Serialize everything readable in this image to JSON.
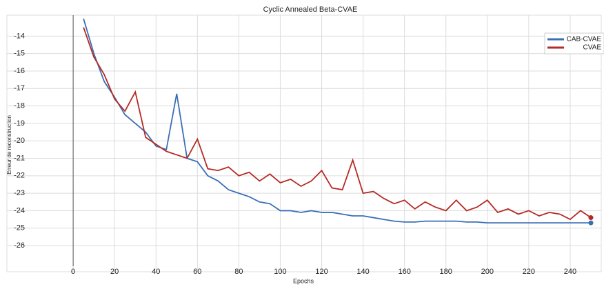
{
  "chart_data": {
    "type": "line",
    "title": "Cyclic Annealed Beta-CVAE",
    "x_label": "Epochs",
    "y_label": "Erreur de reconstruction",
    "x": [
      5,
      10,
      15,
      20,
      25,
      30,
      35,
      40,
      45,
      50,
      55,
      60,
      65,
      70,
      75,
      80,
      85,
      90,
      95,
      100,
      105,
      110,
      115,
      120,
      125,
      130,
      135,
      140,
      145,
      150,
      155,
      160,
      165,
      170,
      175,
      180,
      185,
      190,
      195,
      200,
      205,
      210,
      215,
      220,
      225,
      230,
      235,
      240,
      245,
      250
    ],
    "series": [
      {
        "name": "CAB-CVAE",
        "color": "#3a6fb5",
        "values": [
          -13.0,
          -15.0,
          -16.6,
          -17.5,
          -18.5,
          -19.0,
          -19.5,
          -20.3,
          -20.5,
          -17.3,
          -21.0,
          -21.2,
          -22.0,
          -22.3,
          -22.8,
          -23.0,
          -23.2,
          -23.5,
          -23.6,
          -24.0,
          -24.0,
          -24.1,
          -24.0,
          -24.1,
          -24.1,
          -24.2,
          -24.3,
          -24.3,
          -24.4,
          -24.5,
          -24.6,
          -24.65,
          -24.65,
          -24.6,
          -24.6,
          -24.6,
          -24.6,
          -24.65,
          -24.65,
          -24.7,
          -24.7,
          -24.7,
          -24.7,
          -24.7,
          -24.7,
          -24.7,
          -24.7,
          -24.7,
          -24.7,
          -24.7
        ]
      },
      {
        "name": "CVAE",
        "color": "#b52a24",
        "values": [
          -13.5,
          -15.2,
          -16.2,
          -17.6,
          -18.3,
          -17.2,
          -19.8,
          -20.2,
          -20.6,
          -20.8,
          -21.0,
          -19.9,
          -21.6,
          -21.7,
          -21.5,
          -22.0,
          -21.8,
          -22.3,
          -21.9,
          -22.4,
          -22.2,
          -22.6,
          -22.3,
          -21.7,
          -22.7,
          -22.8,
          -21.1,
          -23.0,
          -22.9,
          -23.3,
          -23.6,
          -23.4,
          -23.9,
          -23.5,
          -23.8,
          -24.0,
          -23.4,
          -24.0,
          -23.8,
          -23.4,
          -24.1,
          -23.9,
          -24.2,
          -24.0,
          -24.3,
          -24.1,
          -24.2,
          -24.5,
          -24.0,
          -24.4
        ]
      }
    ],
    "xlim": [
      -32,
      255
    ],
    "ylim": [
      -27.5,
      -12.8
    ],
    "xticks": [
      0,
      20,
      40,
      60,
      80,
      100,
      120,
      140,
      160,
      180,
      200,
      220,
      240
    ],
    "yticks": [
      -26,
      -25,
      -24,
      -23,
      -22,
      -21,
      -20,
      -19,
      -18,
      -17,
      -16,
      -15,
      -14
    ],
    "grid": true,
    "legend": "upper right"
  }
}
